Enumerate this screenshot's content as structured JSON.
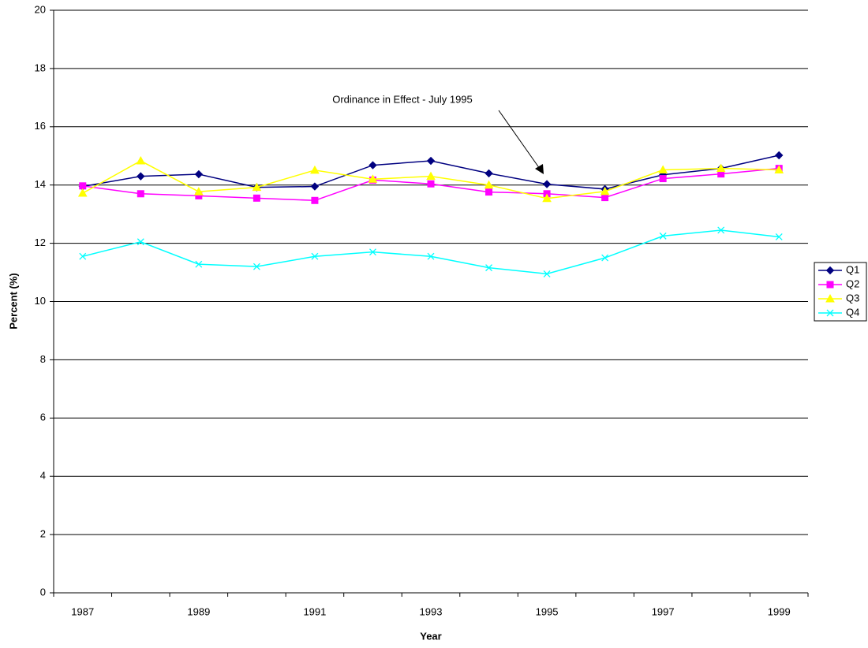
{
  "chart_data": {
    "type": "line",
    "x_label": "Year",
    "y_label": "Percent (%)",
    "annotation": "Ordinance in Effect - July 1995",
    "categories": [
      "1987",
      null,
      "1989",
      null,
      "1991",
      null,
      "1993",
      null,
      "1995",
      null,
      "1997",
      null,
      "1999"
    ],
    "series": [
      {
        "name": "Q1",
        "color": "#000080",
        "marker": "diamond",
        "values": [
          13.95,
          14.3,
          14.37,
          13.92,
          13.95,
          14.68,
          14.83,
          14.4,
          14.03,
          13.86,
          14.35,
          14.57,
          15.02
        ]
      },
      {
        "name": "Q2",
        "color": "#ff00ff",
        "marker": "square",
        "values": [
          13.97,
          13.7,
          13.63,
          13.55,
          13.47,
          14.17,
          14.04,
          13.76,
          13.7,
          13.57,
          14.22,
          14.38,
          14.57
        ]
      },
      {
        "name": "Q3",
        "color": "#ffff00",
        "marker": "triangle",
        "values": [
          13.72,
          14.83,
          13.77,
          13.92,
          14.51,
          14.2,
          14.3,
          14.0,
          13.54,
          13.78,
          14.52,
          14.57,
          14.52
        ]
      },
      {
        "name": "Q4",
        "color": "#00ffff",
        "marker": "x",
        "values": [
          11.55,
          12.05,
          11.28,
          11.2,
          11.55,
          11.7,
          11.55,
          11.16,
          10.95,
          11.5,
          12.25,
          12.45,
          12.22
        ]
      }
    ],
    "ylim": [
      0,
      20
    ],
    "yticks": [
      0,
      2,
      4,
      6,
      8,
      10,
      12,
      14,
      16,
      18,
      20
    ],
    "grid": true,
    "legend": "right"
  }
}
